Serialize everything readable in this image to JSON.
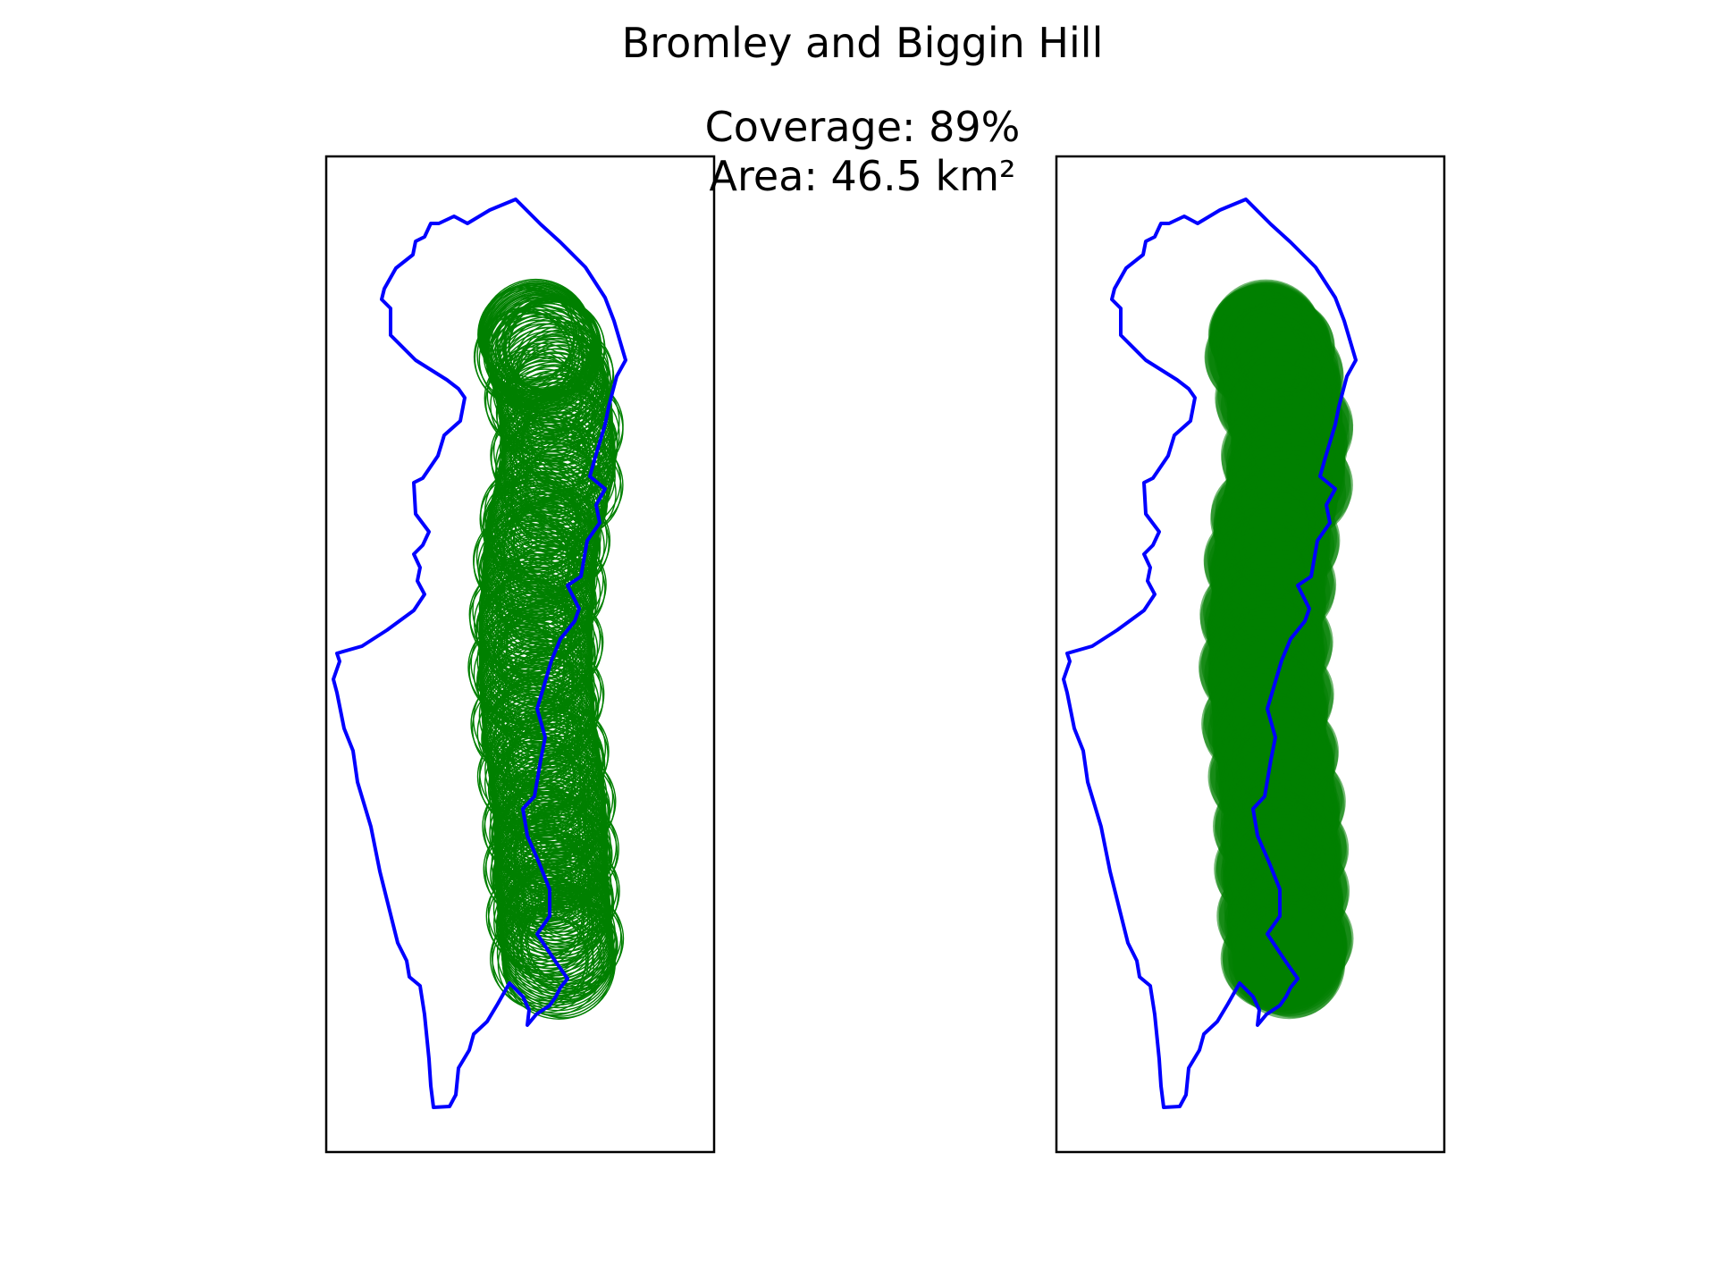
{
  "figure": {
    "title": "Bromley and Biggin Hill",
    "coverage_text": "Coverage: 89%",
    "area_text": "Area: 46.5 km²"
  },
  "colors": {
    "boundary": "#0000ff",
    "coverage": "#008000",
    "frame": "#000000",
    "background": "#ffffff"
  },
  "panels": [
    {
      "name": "coverage-circles-outline",
      "style": "outline"
    },
    {
      "name": "coverage-circles-filled",
      "style": "filled"
    }
  ],
  "coverage_path": [
    [
      0.54,
      0.18
    ],
    [
      0.56,
      0.2
    ],
    [
      0.59,
      0.25
    ],
    [
      0.6,
      0.31
    ],
    [
      0.56,
      0.37
    ],
    [
      0.55,
      0.41
    ],
    [
      0.54,
      0.47
    ],
    [
      0.54,
      0.52
    ],
    [
      0.55,
      0.58
    ],
    [
      0.57,
      0.63
    ],
    [
      0.58,
      0.68
    ],
    [
      0.58,
      0.72
    ],
    [
      0.59,
      0.77
    ],
    [
      0.6,
      0.81
    ]
  ],
  "circle_radius": 0.145
}
